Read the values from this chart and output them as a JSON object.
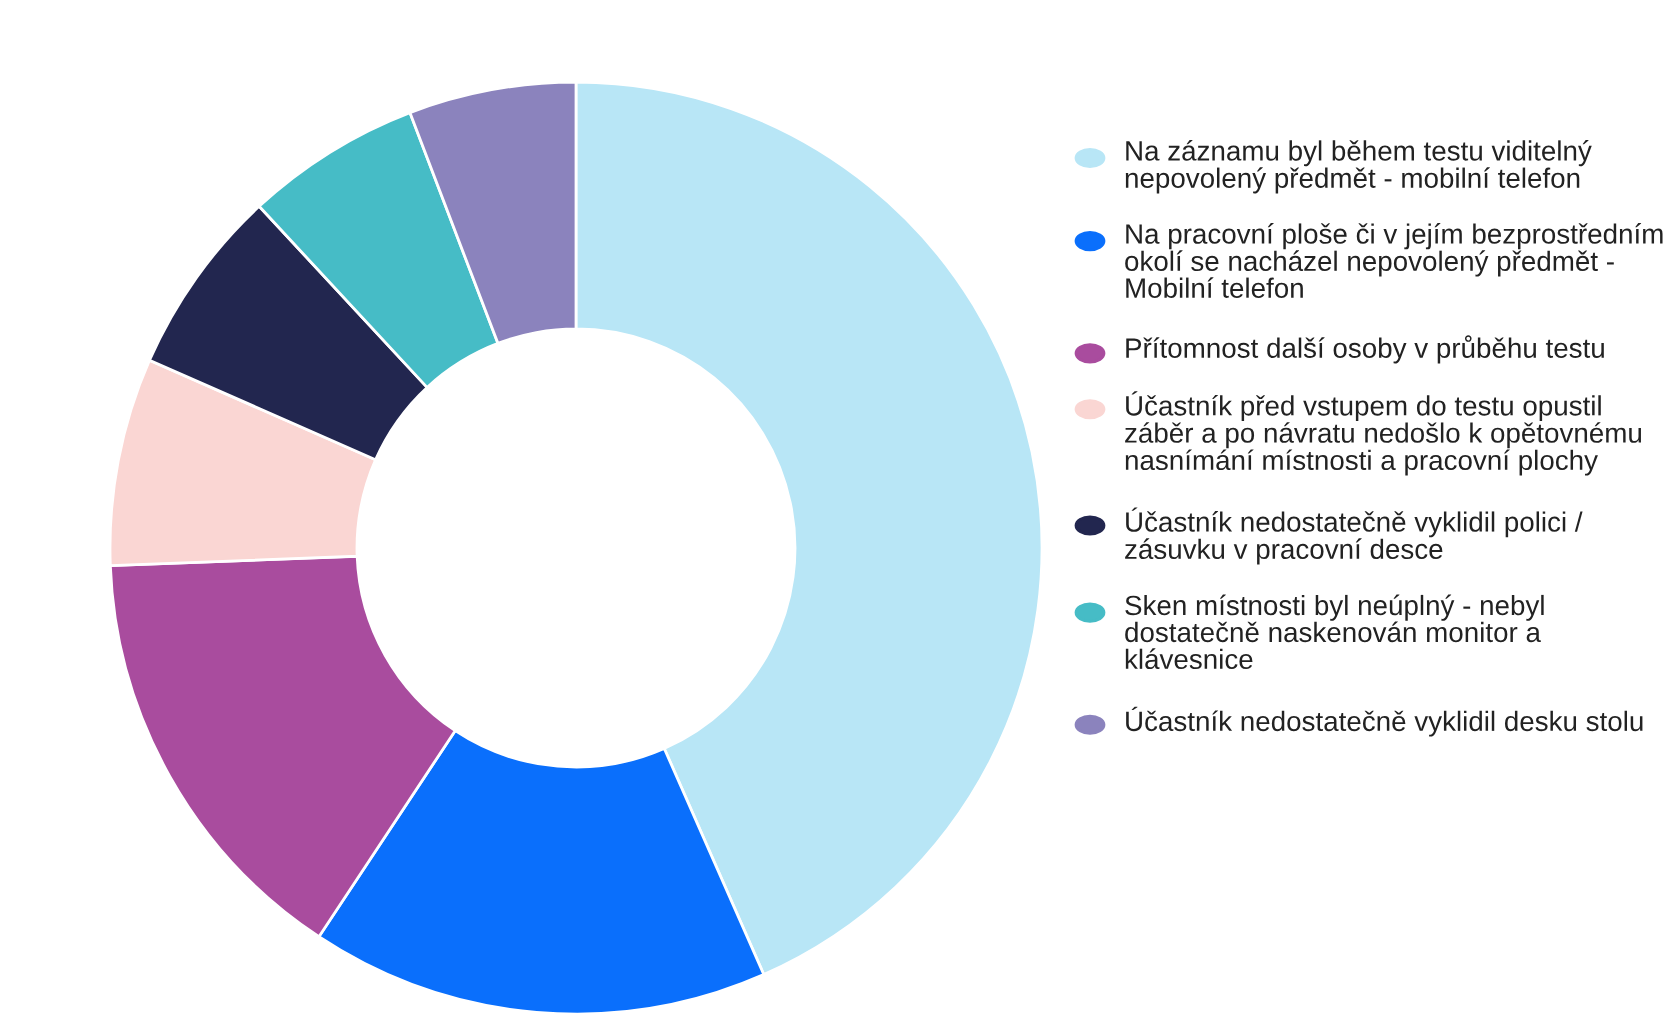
{
  "chart_data": {
    "type": "donut",
    "legend": "right",
    "categories": [
      "Na záznamu byl během testu viditelný nepovolený předmět - mobilní telefon",
      "Na pracovní ploše či v jejím bezprostředním okolí se nacházel nepovolený předmět - Mobilní telefon",
      "Přítomnost další osoby v průběhu testu",
      "Účastník před vstupem do testu opustil záběr a po návratu nedošlo k opětovnému nasnímání místnosti a pracovní plochy",
      "Účastník nedostatečně vyklidil polici / zásuvku v pracovní desce",
      "Sken místnosti byl neúplný - nebyl dostatečně naskenován monitor a klávesnice",
      "Účastník nedostatečně vyklidil desku stolu"
    ],
    "values": [
      43.4,
      15.9,
      15.1,
      7.2,
      6.5,
      6.1,
      5.8
    ],
    "colors": [
      "#b8e6f6",
      "#0a6ffc",
      "#a94c9e",
      "#fad6d3",
      "#22264f",
      "#46bcc6",
      "#8b83bd"
    ]
  }
}
